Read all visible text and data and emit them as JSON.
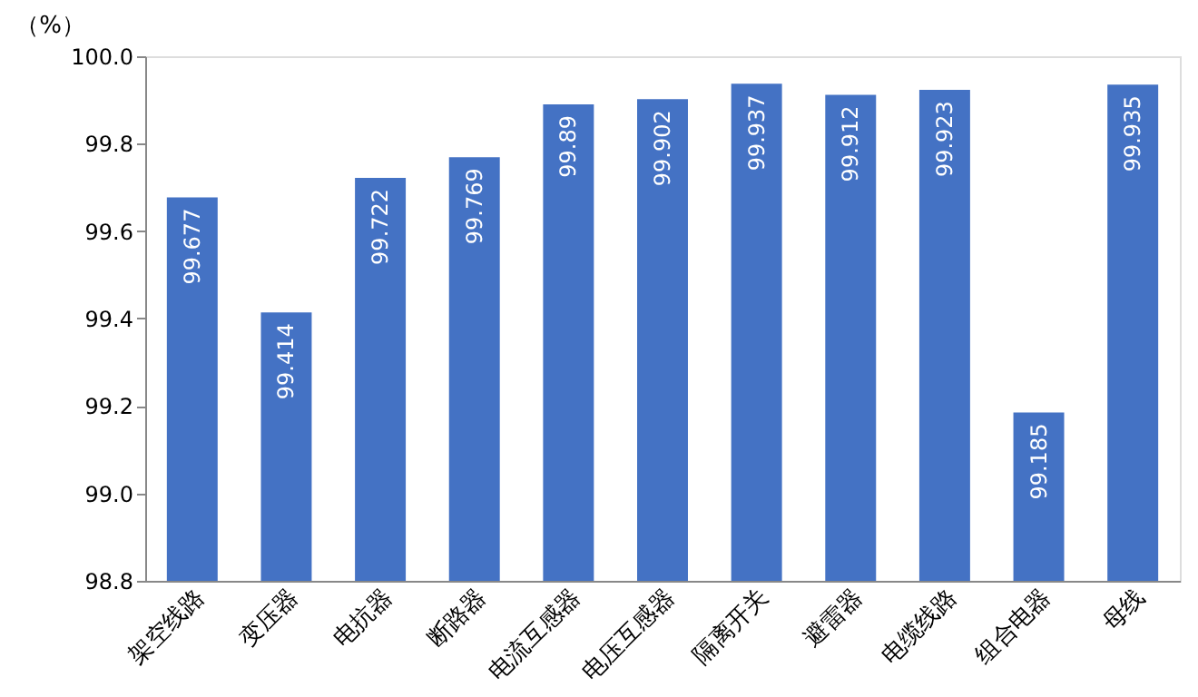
{
  "chart_data": {
    "type": "bar",
    "ylabel": "（%）",
    "categories": [
      "架空线路",
      "变压器",
      "电抗器",
      "断路器",
      "电流互感器",
      "电压互感器",
      "隔离开关",
      "避雷器",
      "电缆线路",
      "组合电器",
      "母线"
    ],
    "values": [
      99.677,
      99.414,
      99.722,
      99.769,
      99.89,
      99.902,
      99.937,
      99.912,
      99.923,
      99.185,
      99.935
    ],
    "color": "#4472c4",
    "ylim": [
      98.8,
      100.0
    ],
    "yticks": [
      98.8,
      {
        "value": 99.0,
        "label": "99.0"
      },
      99.2,
      99.4,
      99.6,
      99.8,
      {
        "value": 100.0,
        "label": "100.0"
      }
    ],
    "grid": false,
    "data_labels": true
  }
}
